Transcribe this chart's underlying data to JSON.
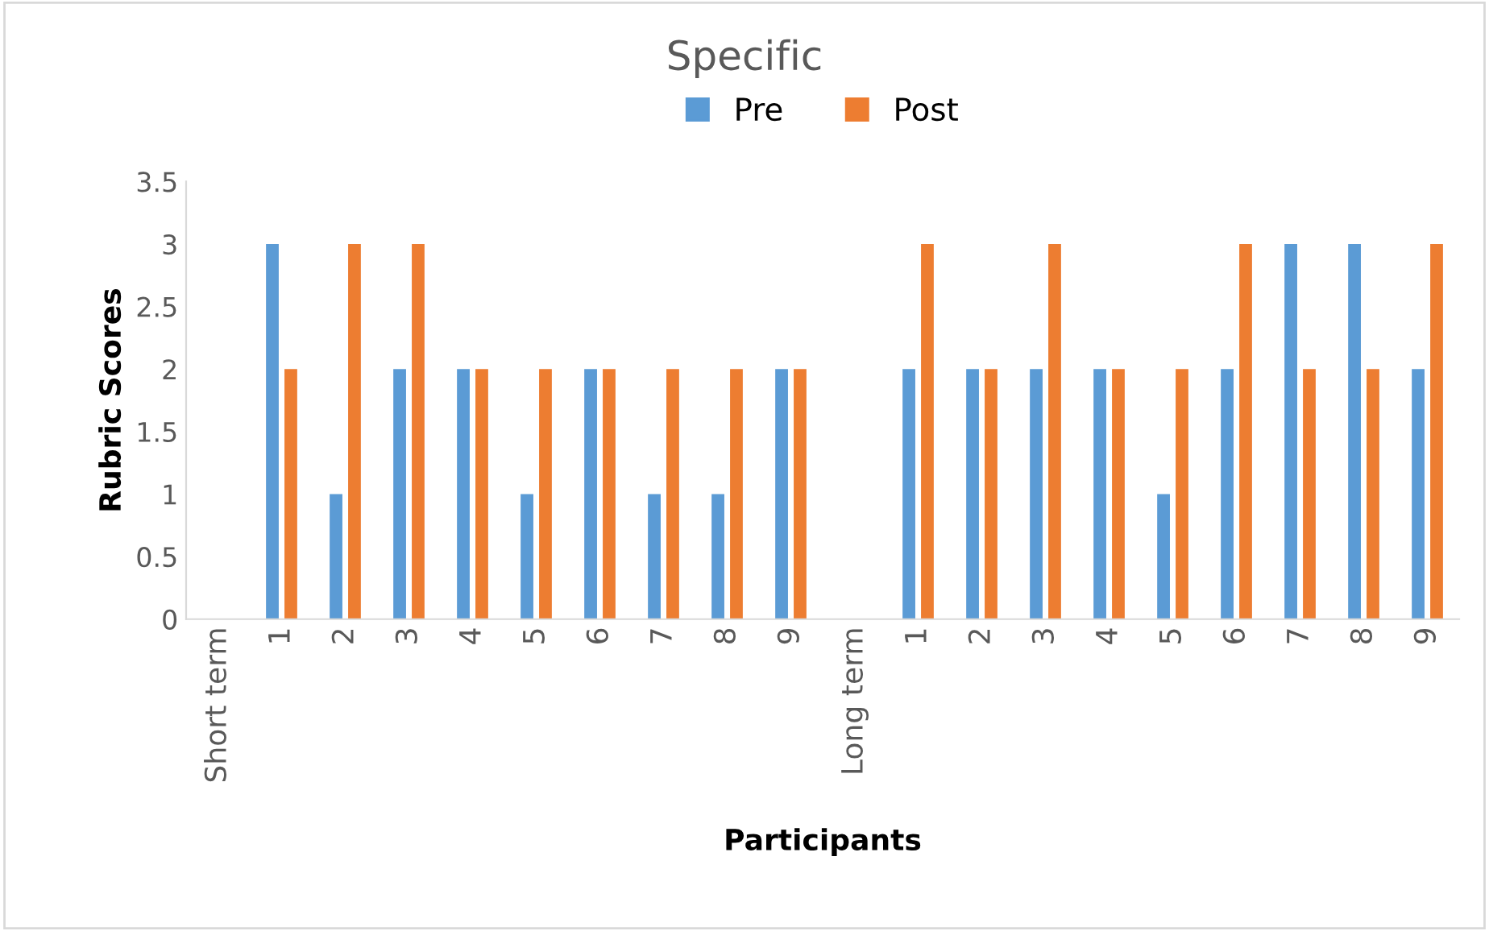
{
  "chart_data": {
    "type": "bar",
    "title": "Specific",
    "xlabel": "Participants",
    "ylabel": "Rubric Scores",
    "categories": [
      "Short term",
      "1",
      "2",
      "3",
      "4",
      "5",
      "6",
      "7",
      "8",
      "9",
      "Long term",
      "1",
      "2",
      "3",
      "4",
      "5",
      "6",
      "7",
      "8",
      "9"
    ],
    "series": [
      {
        "name": "Pre",
        "color": "#5b9bd5",
        "values": [
          null,
          3,
          1,
          2,
          2,
          1,
          2,
          1,
          1,
          2,
          null,
          2,
          2,
          2,
          2,
          1,
          2,
          3,
          3,
          2
        ]
      },
      {
        "name": "Post",
        "color": "#ed7d31",
        "values": [
          null,
          2,
          3,
          3,
          2,
          2,
          2,
          2,
          2,
          2,
          null,
          3,
          2,
          3,
          2,
          2,
          3,
          2,
          2,
          3
        ]
      }
    ],
    "ylim": [
      0,
      3.5
    ],
    "yticks": [
      0,
      0.5,
      1,
      1.5,
      2,
      2.5,
      3,
      3.5
    ],
    "grid": false,
    "legend": "top"
  }
}
